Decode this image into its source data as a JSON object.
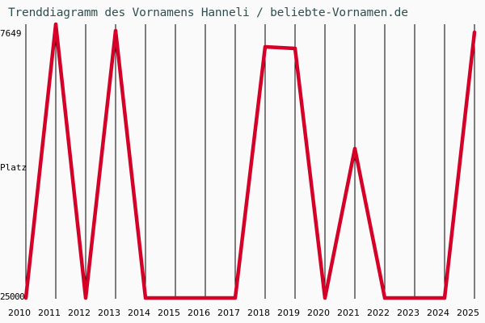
{
  "header": {
    "title": "Trenddiagramm des Vornamens Hanneli / beliebte-Vornamen.de"
  },
  "axes": {
    "y_top_label": "7649",
    "y_mid_label": "Platz",
    "y_bottom_label": "25000",
    "x_labels": [
      "2010",
      "2011",
      "2012",
      "2013",
      "2014",
      "2015",
      "2016",
      "2017",
      "2018",
      "2019",
      "2020",
      "2021",
      "2022",
      "2023",
      "2024",
      "2025"
    ]
  },
  "colors": {
    "line": "#d50027",
    "grid": "#000000",
    "title": "#2f4f4f",
    "background": "#fafafa"
  },
  "chart_data": {
    "type": "line",
    "title": "Trenddiagramm des Vornamens Hanneli / beliebte-Vornamen.de",
    "xlabel": "",
    "ylabel": "Platz",
    "y_inverted": true,
    "ylim": [
      25000,
      7649
    ],
    "grid": "vertical lines per year",
    "legend": "none",
    "x": [
      2010,
      2011,
      2012,
      2013,
      2014,
      2015,
      2016,
      2017,
      2018,
      2019,
      2020,
      2021,
      2022,
      2023,
      2024,
      2025
    ],
    "series": [
      {
        "name": "Hanneli",
        "values": [
          25000,
          7012,
          25000,
          7437,
          25000,
          25000,
          25000,
          25000,
          8498,
          8604,
          25000,
          15184,
          25000,
          25000,
          25000,
          7543
        ]
      }
    ]
  }
}
